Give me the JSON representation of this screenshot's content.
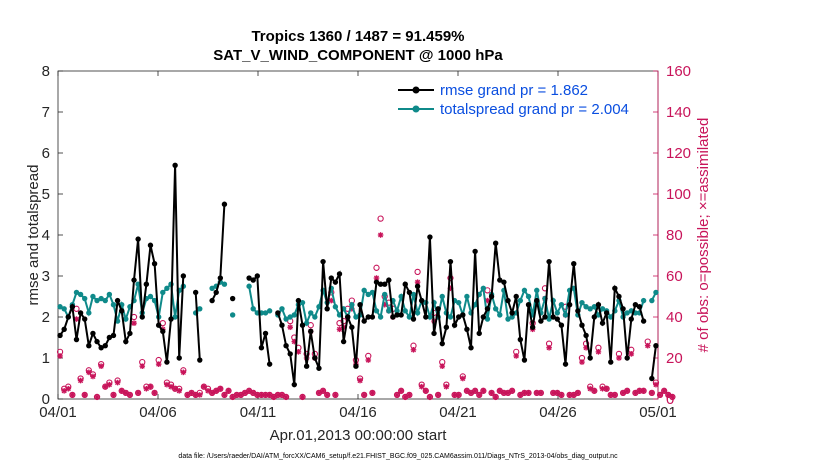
{
  "chart_data": {
    "type": "line",
    "title_line1": "Tropics 1360 / 1487 = 91.459%",
    "title_line2": "SAT_V_WIND_COMPONENT @ 1000 hPa",
    "xlabel": "Apr.01,2013 00:00:00 start",
    "ylabel_left": "rmse and totalspread",
    "ylabel_right": "# of obs: o=possible; ×=assimilated",
    "footer": "data file: /Users/raeder/DAI/ATM_forcXX/CAM6_setup/f.e21.FHIST_BGC.f09_025.CAM6assim.011/Diags_NTrS_2013-04/obs_diag_output.nc",
    "xlim": [
      0,
      30
    ],
    "ylim_left": [
      0,
      8
    ],
    "ylim_right": [
      0,
      160
    ],
    "x_ticks": [
      0,
      5,
      10,
      15,
      20,
      25,
      30
    ],
    "x_tick_labels": [
      "04/01",
      "04/06",
      "04/11",
      "04/16",
      "04/21",
      "04/26",
      "05/01"
    ],
    "y_ticks_left": [
      0,
      1,
      2,
      3,
      4,
      5,
      6,
      7,
      8
    ],
    "y_ticks_left_labels": [
      "0",
      "1",
      "2",
      "3",
      "4",
      "5",
      "6",
      "7",
      "8"
    ],
    "y_ticks_right": [
      0,
      20,
      40,
      60,
      80,
      100,
      120,
      140,
      160
    ],
    "y_ticks_right_labels": [
      "0",
      "20",
      "40",
      "60",
      "80",
      "100",
      "120",
      "140",
      "160"
    ],
    "legend_position": "top-right",
    "colors": {
      "rmse": "#000000",
      "spread": "#0f8a8a",
      "obs": "#c8145a",
      "legend_text": "#0a4ee0"
    },
    "series": [
      {
        "name": "rmse grand pr = 1.862",
        "axis": "left",
        "values": [
          1.55,
          1.7,
          2.0,
          2.25,
          1.45,
          2.1,
          1.95,
          1.3,
          1.6,
          1.4,
          1.25,
          1.3,
          1.5,
          1.55,
          2.4,
          2.15,
          1.4,
          1.6,
          2.9,
          3.9,
          2.0,
          2.8,
          3.75,
          3.3,
          1.8,
          1.65,
          0.9,
          1.95,
          5.7,
          1.0,
          3.0,
          null,
          null,
          2.6,
          0.95,
          null,
          null,
          2.4,
          2.6,
          2.95,
          4.75,
          null,
          2.45,
          null,
          null,
          null,
          2.95,
          2.9,
          3.0,
          1.25,
          1.6,
          0.85,
          null,
          2.1,
          1.8,
          1.3,
          1.1,
          0.35,
          2.4,
          1.8,
          0.8,
          1.65,
          1.0,
          0.75,
          3.35,
          2.2,
          2.95,
          2.85,
          3.05,
          1.4,
          2.0,
          1.75,
          0.8,
          2.3,
          1.9,
          2.0,
          2.0,
          2.85,
          2.8,
          2.8,
          2.9,
          2.0,
          2.05,
          2.05,
          2.8,
          2.6,
          1.95,
          2.75,
          2.4,
          2.0,
          3.95,
          1.6,
          2.2,
          1.35,
          1.75,
          3.35,
          1.8,
          2.0,
          2.05,
          1.7,
          1.25,
          3.6,
          1.6,
          2.0,
          2.2,
          2.5,
          3.8,
          2.9,
          2.85,
          2.4,
          2.1,
          2.5,
          1.45,
          0.95,
          2.3,
          1.75,
          2.4,
          1.9,
          2.0,
          3.35,
          2.0,
          1.95,
          1.8,
          0.85,
          2.3,
          3.3,
          2.15,
          1.8,
          1.55,
          1.0,
          2.0,
          2.3,
          1.85,
          2.1,
          0.9,
          2.7,
          2.5,
          2.2,
          1.0,
          1.95,
          2.3,
          2.25,
          1.9,
          null,
          0.5,
          1.3
        ]
      },
      {
        "name": "totalspread grand pr = 2.004",
        "axis": "left",
        "values": [
          2.25,
          2.2,
          2.0,
          2.3,
          2.6,
          2.55,
          2.45,
          2.1,
          2.5,
          2.4,
          2.45,
          2.4,
          2.55,
          2.3,
          1.9,
          2.3,
          1.95,
          2.25,
          2.4,
          2.8,
          2.1,
          2.45,
          2.5,
          2.4,
          2.0,
          2.6,
          2.7,
          2.8,
          2.0,
          2.65,
          2.75,
          null,
          null,
          2.1,
          2.2,
          null,
          null,
          2.7,
          2.75,
          2.85,
          2.8,
          null,
          2.05,
          null,
          null,
          null,
          2.75,
          2.2,
          2.1,
          2.1,
          2.1,
          2.15,
          null,
          2.05,
          2.2,
          1.95,
          2.0,
          2.05,
          2.3,
          2.35,
          1.85,
          2.1,
          2.0,
          2.25,
          2.65,
          2.35,
          2.7,
          2.25,
          2.05,
          2.2,
          2.0,
          2.3,
          2.0,
          2.05,
          2.65,
          2.55,
          2.6,
          2.15,
          2.0,
          2.55,
          2.15,
          2.4,
          2.15,
          2.5,
          2.15,
          2.0,
          2.55,
          2.1,
          2.4,
          2.35,
          2.0,
          2.35,
          2.0,
          2.5,
          2.1,
          2.0,
          2.4,
          2.35,
          2.05,
          2.5,
          2.1,
          2.3,
          2.55,
          2.7,
          1.95,
          2.55,
          2.2,
          2.05,
          2.65,
          1.95,
          2.0,
          2.1,
          2.4,
          2.65,
          2.5,
          2.05,
          2.65,
          2.1,
          2.45,
          1.95,
          2.4,
          2.1,
          2.3,
          2.05,
          2.65,
          2.7,
          2.05,
          2.35,
          2.25,
          2.2,
          2.25,
          2.05,
          2.2,
          2.15,
          2.0,
          2.15,
          2.4,
          2.0,
          2.1,
          2.15,
          2.1,
          2.1,
          2.4,
          null,
          2.4,
          2.6
        ]
      },
      {
        "name": "obs possible",
        "axis": "right",
        "marker": "circle",
        "values": [
          23,
          5,
          6,
          2,
          44,
          10,
          2,
          14,
          12,
          1,
          17,
          6,
          8,
          2,
          9,
          4,
          3,
          2,
          40,
          3,
          18,
          6,
          6,
          3,
          19,
          37,
          8,
          7,
          5,
          5,
          14,
          2,
          3,
          2,
          3,
          6,
          5,
          3,
          4,
          5,
          2,
          4,
          1,
          2,
          2,
          3,
          4,
          3,
          2,
          2,
          2,
          2,
          1,
          2,
          2,
          1,
          38,
          30,
          25,
          1,
          22,
          36,
          22,
          3,
          4,
          2,
          52,
          2,
          37,
          38,
          44,
          48,
          19,
          10,
          2,
          21,
          3,
          64,
          88,
          50,
          47,
          44,
          2,
          4,
          1,
          2,
          26,
          62,
          7,
          4,
          1,
          42,
          2,
          18,
          7,
          59,
          2,
          2,
          11,
          4,
          3,
          4,
          2,
          4,
          53,
          3,
          1,
          4,
          3,
          3,
          4,
          23,
          2,
          3,
          3,
          37,
          3,
          3,
          54,
          27,
          3,
          3,
          2,
          45,
          2,
          2,
          3,
          20,
          27,
          6,
          4,
          25,
          6,
          5,
          2,
          2,
          22,
          3,
          4,
          24,
          3,
          4,
          4,
          28,
          3,
          8,
          2,
          4,
          2,
          1
        ]
      },
      {
        "name": "obs assimilated",
        "axis": "right",
        "marker": "asterisk",
        "values": [
          21,
          4,
          5,
          2,
          39,
          9,
          2,
          13,
          11,
          1,
          16,
          6,
          7,
          2,
          8,
          4,
          3,
          2,
          37,
          3,
          16,
          5,
          6,
          3,
          17,
          34,
          7,
          6,
          5,
          4,
          13,
          2,
          3,
          2,
          2,
          6,
          4,
          3,
          4,
          5,
          2,
          4,
          1,
          2,
          2,
          3,
          4,
          3,
          2,
          2,
          2,
          2,
          1,
          2,
          2,
          1,
          35,
          28,
          23,
          1,
          20,
          33,
          20,
          3,
          4,
          2,
          48,
          2,
          34,
          35,
          40,
          44,
          17,
          9,
          2,
          19,
          3,
          59,
          80,
          46,
          43,
          40,
          2,
          4,
          1,
          2,
          24,
          57,
          6,
          4,
          1,
          38,
          2,
          16,
          6,
          54,
          2,
          2,
          10,
          4,
          3,
          4,
          2,
          4,
          48,
          3,
          1,
          4,
          3,
          3,
          4,
          21,
          2,
          3,
          3,
          34,
          3,
          3,
          49,
          25,
          3,
          3,
          2,
          41,
          2,
          2,
          3,
          18,
          25,
          5,
          4,
          23,
          5,
          5,
          2,
          2,
          20,
          3,
          4,
          22,
          3,
          4,
          4,
          26,
          3,
          7,
          2,
          4,
          2,
          1
        ]
      }
    ]
  }
}
